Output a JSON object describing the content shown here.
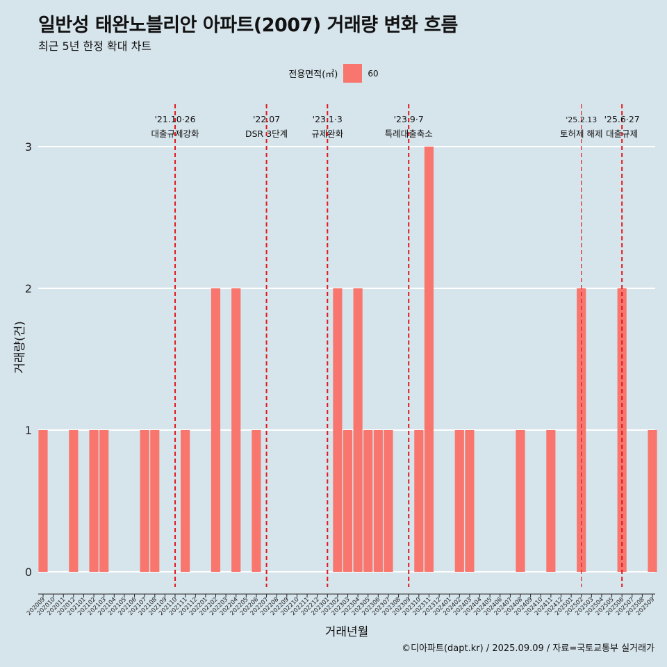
{
  "header": {
    "title": "일반성 태완노블리안 아파트(2007) 거래량 변화 흐름",
    "subtitle": "최근 5년 한정 확대 차트"
  },
  "legend": {
    "title": "전용면적(㎡)",
    "entry": "60",
    "position": "top-center"
  },
  "caption": "©디아파트(dapt.kr) / 2025.09.09 / 자료=국토교통부 실거래가",
  "colors": {
    "background": "#d6e4eb",
    "bar": "#f8766d",
    "grid": "#ffffff",
    "event_line": "#e0191d"
  },
  "chart_data": {
    "type": "bar",
    "xlabel": "거래년월",
    "ylabel": "거래량(건)",
    "ylim": [
      0,
      3
    ],
    "yticks": [
      0,
      1,
      2,
      3
    ],
    "grid": "horizontal",
    "categories": [
      "202009",
      "202010",
      "202011",
      "202012",
      "202101",
      "202102",
      "202103",
      "202104",
      "202105",
      "202106",
      "202107",
      "202108",
      "202109",
      "202110",
      "202111",
      "202112",
      "202201",
      "202202",
      "202203",
      "202204",
      "202205",
      "202206",
      "202207",
      "202208",
      "202209",
      "202210",
      "202211",
      "202212",
      "202301",
      "202302",
      "202303",
      "202304",
      "202305",
      "202306",
      "202307",
      "202308",
      "202309",
      "202310",
      "202311",
      "202312",
      "202401",
      "202402",
      "202403",
      "202404",
      "202405",
      "202406",
      "202407",
      "202408",
      "202409",
      "202410",
      "202411",
      "202412",
      "202501",
      "202502",
      "202503",
      "202504",
      "202505",
      "202506",
      "202507",
      "202508",
      "202509"
    ],
    "series": [
      {
        "name": "60",
        "values": [
          1,
          0,
          0,
          1,
          0,
          1,
          1,
          0,
          0,
          0,
          1,
          1,
          0,
          0,
          1,
          0,
          0,
          2,
          0,
          2,
          0,
          1,
          0,
          0,
          0,
          0,
          0,
          0,
          0,
          2,
          1,
          2,
          1,
          1,
          1,
          0,
          0,
          1,
          3,
          0,
          0,
          1,
          1,
          0,
          0,
          0,
          0,
          1,
          0,
          0,
          1,
          0,
          0,
          2,
          0,
          0,
          0,
          2,
          0,
          0,
          1
        ]
      }
    ],
    "events": [
      {
        "x": 202110,
        "date": "'21.10·26",
        "label": "대출규제강화"
      },
      {
        "x": 202207,
        "date": "'22.07",
        "label": "DSR 3단계"
      },
      {
        "x": 202301,
        "date": "'23.1·3",
        "label": "규제완화"
      },
      {
        "x": 202309,
        "date": "'23.9·7",
        "label": "특례대출축소"
      },
      {
        "x": 202502,
        "date": "'25.2.13",
        "label": "토허제 해제"
      },
      {
        "x": 202506,
        "date": "'25.6·27",
        "label": "대출규제"
      }
    ]
  }
}
